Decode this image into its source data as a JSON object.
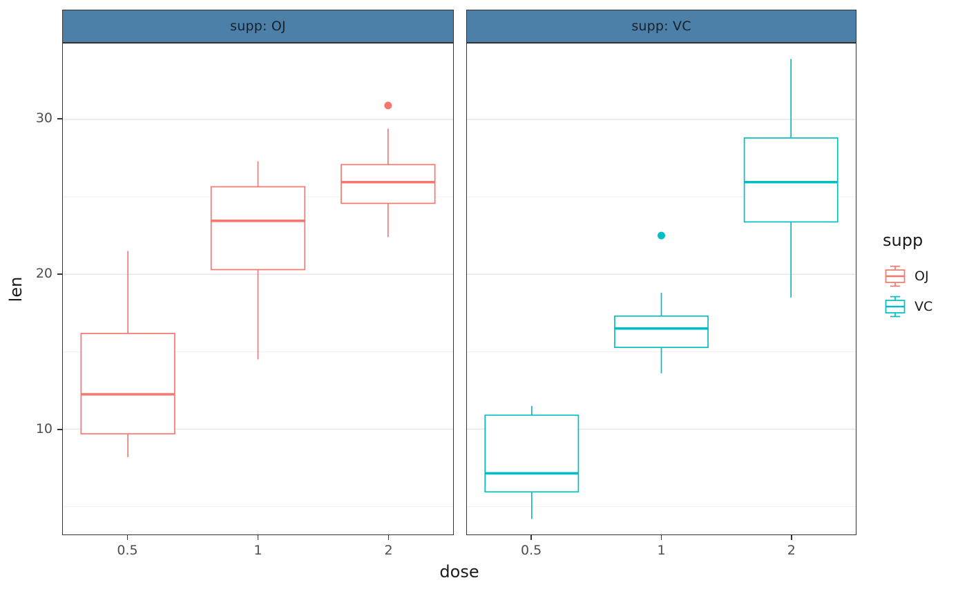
{
  "chart_data": {
    "type": "boxplot",
    "title": "",
    "xlabel": "dose",
    "ylabel": "len",
    "x_categories": [
      "0.5",
      "1",
      "2"
    ],
    "y_ticks": [
      10,
      20,
      30
    ],
    "y_minor_ticks": [
      5,
      15,
      25
    ],
    "ylim": [
      3.2,
      34.9
    ],
    "grid": "horizontal-only",
    "legend": {
      "title": "supp",
      "position": "right",
      "entries": [
        {
          "label": "OJ",
          "color": "#F8766D"
        },
        {
          "label": "VC",
          "color": "#00BEC4"
        }
      ]
    },
    "colors": {
      "oj": "#F8766D",
      "vc": "#00BEC4",
      "strip_fill": "#4C80A8",
      "strip_text": "#15202B",
      "panel_border": "#333333",
      "grid_major": "#E4E4E4",
      "grid_minor": "#F0F0F0",
      "axis_text": "#4D4D4D",
      "title_text": "#1A1A1A"
    },
    "facets": [
      {
        "strip_label": "supp: OJ",
        "series": "OJ",
        "series_color": "#F8766D",
        "boxes": [
          {
            "dose": "0.5",
            "whisker_low": 8.2,
            "q1": 9.7,
            "median": 12.25,
            "q3": 16.18,
            "whisker_high": 21.5,
            "outliers": []
          },
          {
            "dose": "1",
            "whisker_low": 14.5,
            "q1": 20.3,
            "median": 23.45,
            "q3": 25.65,
            "whisker_high": 27.3,
            "outliers": []
          },
          {
            "dose": "2",
            "whisker_low": 22.4,
            "q1": 24.58,
            "median": 25.95,
            "q3": 27.08,
            "whisker_high": 29.4,
            "outliers": [
              30.9
            ]
          }
        ]
      },
      {
        "strip_label": "supp: VC",
        "series": "VC",
        "series_color": "#00BEC4",
        "boxes": [
          {
            "dose": "0.5",
            "whisker_low": 4.2,
            "q1": 5.95,
            "median": 7.15,
            "q3": 10.9,
            "whisker_high": 11.5,
            "outliers": []
          },
          {
            "dose": "1",
            "whisker_low": 13.6,
            "q1": 15.28,
            "median": 16.5,
            "q3": 17.3,
            "whisker_high": 18.8,
            "outliers": [
              22.5
            ]
          },
          {
            "dose": "2",
            "whisker_low": 18.5,
            "q1": 23.38,
            "median": 25.95,
            "q3": 28.8,
            "whisker_high": 33.9,
            "outliers": []
          }
        ]
      }
    ]
  }
}
